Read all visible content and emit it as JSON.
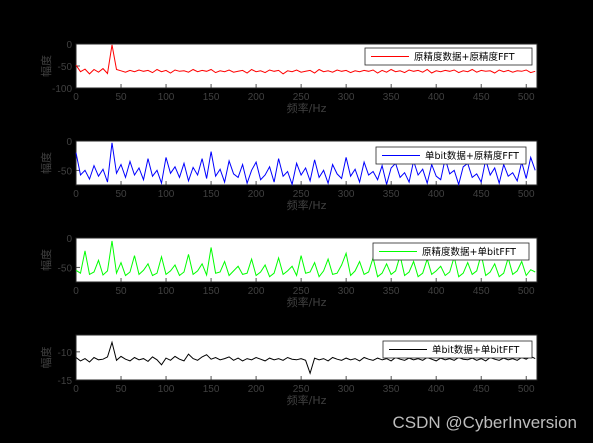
{
  "chart_data": [
    {
      "type": "line",
      "xlabel": "频率/Hz",
      "ylabel": "幅度",
      "xlim": [
        0,
        512
      ],
      "ylim": [
        -100,
        0
      ],
      "xticks": [
        0,
        50,
        100,
        150,
        200,
        250,
        300,
        350,
        400,
        450,
        500
      ],
      "yticks": [
        -100,
        -50,
        0
      ],
      "grid": false,
      "legend": "top-right",
      "series": [
        {
          "name": "原精度数据+原精度FFT",
          "color": "#ff0000",
          "x": [
            0,
            5,
            10,
            15,
            20,
            25,
            30,
            35,
            40,
            45,
            50,
            55,
            60,
            65,
            70,
            75,
            80,
            85,
            90,
            95,
            100,
            105,
            110,
            115,
            120,
            125,
            130,
            135,
            140,
            145,
            150,
            155,
            160,
            165,
            170,
            175,
            180,
            185,
            190,
            195,
            200,
            205,
            210,
            215,
            220,
            225,
            230,
            235,
            240,
            245,
            250,
            255,
            260,
            265,
            270,
            275,
            280,
            285,
            290,
            295,
            300,
            305,
            310,
            315,
            320,
            325,
            330,
            335,
            340,
            345,
            350,
            355,
            360,
            365,
            370,
            375,
            380,
            385,
            390,
            395,
            400,
            405,
            410,
            415,
            420,
            425,
            430,
            435,
            440,
            445,
            450,
            455,
            460,
            465,
            470,
            475,
            480,
            485,
            490,
            495,
            500,
            505,
            510
          ],
          "y": [
            -48,
            -63,
            -57,
            -68,
            -58,
            -64,
            -56,
            -67,
            -2,
            -58,
            -61,
            -64,
            -60,
            -63,
            -59,
            -62,
            -60,
            -65,
            -58,
            -63,
            -60,
            -66,
            -59,
            -62,
            -61,
            -64,
            -58,
            -63,
            -60,
            -62,
            -58,
            -65,
            -61,
            -63,
            -59,
            -64,
            -62,
            -60,
            -66,
            -58,
            -63,
            -61,
            -65,
            -59,
            -62,
            -60,
            -68,
            -61,
            -63,
            -59,
            -64,
            -62,
            -60,
            -66,
            -58,
            -63,
            -61,
            -64,
            -59,
            -62,
            -60,
            -65,
            -61,
            -63,
            -60,
            -62,
            -59,
            -66,
            -60,
            -64,
            -58,
            -63,
            -61,
            -65,
            -59,
            -62,
            -60,
            -64,
            -58,
            -66,
            -61,
            -63,
            -60,
            -62,
            -59,
            -65,
            -61,
            -63,
            -58,
            -64,
            -60,
            -62,
            -61,
            -66,
            -59,
            -63,
            -60,
            -64,
            -61,
            -62,
            -59,
            -65,
            -62
          ]
        }
      ]
    },
    {
      "type": "line",
      "xlabel": "频率/Hz",
      "ylabel": "幅度",
      "xlim": [
        0,
        512
      ],
      "ylim": [
        -75,
        0
      ],
      "xticks": [
        0,
        50,
        100,
        150,
        200,
        250,
        300,
        350,
        400,
        450,
        500
      ],
      "yticks": [
        -50,
        0
      ],
      "grid": false,
      "legend": "top-right",
      "series": [
        {
          "name": "单bit数据+原精度FFT",
          "color": "#0000ff",
          "x": [
            0,
            5,
            10,
            15,
            20,
            25,
            30,
            35,
            40,
            45,
            50,
            55,
            60,
            65,
            70,
            75,
            80,
            85,
            90,
            95,
            100,
            105,
            110,
            115,
            120,
            125,
            130,
            135,
            140,
            145,
            150,
            155,
            160,
            165,
            170,
            175,
            180,
            185,
            190,
            195,
            200,
            205,
            210,
            215,
            220,
            225,
            230,
            235,
            240,
            245,
            250,
            255,
            260,
            265,
            270,
            275,
            280,
            285,
            290,
            295,
            300,
            305,
            310,
            315,
            320,
            325,
            330,
            335,
            340,
            345,
            350,
            355,
            360,
            365,
            370,
            375,
            380,
            385,
            390,
            395,
            400,
            405,
            410,
            415,
            420,
            425,
            430,
            435,
            440,
            445,
            450,
            455,
            460,
            465,
            470,
            475,
            480,
            485,
            490,
            495,
            500,
            505,
            510
          ],
          "y": [
            -20,
            -58,
            -50,
            -65,
            -42,
            -60,
            -48,
            -70,
            -3,
            -55,
            -40,
            -62,
            -35,
            -58,
            -46,
            -66,
            -30,
            -60,
            -50,
            -72,
            -28,
            -55,
            -44,
            -62,
            -38,
            -68,
            -45,
            -58,
            -30,
            -64,
            -18,
            -60,
            -48,
            -70,
            -34,
            -56,
            -62,
            -40,
            -72,
            -50,
            -36,
            -66,
            -58,
            -44,
            -70,
            -30,
            -60,
            -52,
            -74,
            -38,
            -58,
            -46,
            -68,
            -32,
            -62,
            -50,
            -72,
            -40,
            -56,
            -64,
            -28,
            -60,
            -48,
            -70,
            -36,
            -58,
            -52,
            -66,
            -42,
            -74,
            -46,
            -38,
            -62,
            -54,
            -70,
            -34,
            -58,
            -48,
            -72,
            -40,
            -60,
            -66,
            -30,
            -56,
            -50,
            -74,
            -44,
            -38,
            -62,
            -56,
            -70,
            -32,
            -58,
            -46,
            -72,
            -40,
            -60,
            -54,
            -68,
            -36,
            -64,
            -28,
            -50
          ]
        }
      ]
    },
    {
      "type": "line",
      "xlabel": "频率/Hz",
      "ylabel": "幅度",
      "xlim": [
        0,
        512
      ],
      "ylim": [
        -75,
        0
      ],
      "xticks": [
        0,
        50,
        100,
        150,
        200,
        250,
        300,
        350,
        400,
        450,
        500
      ],
      "yticks": [
        -50,
        0
      ],
      "grid": false,
      "legend": "top-right",
      "series": [
        {
          "name": "原精度数据+单bitFFT",
          "color": "#00ff00",
          "x": [
            0,
            5,
            10,
            15,
            20,
            25,
            30,
            35,
            40,
            45,
            50,
            55,
            60,
            65,
            70,
            75,
            80,
            85,
            90,
            95,
            100,
            105,
            110,
            115,
            120,
            125,
            130,
            135,
            140,
            145,
            150,
            155,
            160,
            165,
            170,
            175,
            180,
            185,
            190,
            195,
            200,
            205,
            210,
            215,
            220,
            225,
            230,
            235,
            240,
            245,
            250,
            255,
            260,
            265,
            270,
            275,
            280,
            285,
            290,
            295,
            300,
            305,
            310,
            315,
            320,
            325,
            330,
            335,
            340,
            345,
            350,
            355,
            360,
            365,
            370,
            375,
            380,
            385,
            390,
            395,
            400,
            405,
            410,
            415,
            420,
            425,
            430,
            435,
            440,
            445,
            450,
            455,
            460,
            465,
            470,
            475,
            480,
            485,
            490,
            495,
            500,
            505,
            510
          ],
          "y": [
            -55,
            -60,
            -22,
            -62,
            -58,
            -38,
            -63,
            -56,
            -5,
            -60,
            -42,
            -64,
            -58,
            -30,
            -62,
            -55,
            -44,
            -64,
            -60,
            -32,
            -62,
            -56,
            -46,
            -64,
            -58,
            -28,
            -62,
            -56,
            -44,
            -63,
            -16,
            -60,
            -58,
            -40,
            -64,
            -56,
            -48,
            -62,
            -60,
            -36,
            -64,
            -58,
            -46,
            -66,
            -60,
            -34,
            -62,
            -56,
            -48,
            -64,
            -30,
            -60,
            -58,
            -42,
            -66,
            -56,
            -36,
            -62,
            -60,
            -46,
            -26,
            -64,
            -56,
            -40,
            -62,
            -58,
            -34,
            -66,
            -60,
            -44,
            -62,
            -56,
            -30,
            -64,
            -58,
            -40,
            -66,
            -60,
            -36,
            -62,
            -56,
            -48,
            -64,
            -58,
            -32,
            -66,
            -60,
            -42,
            -62,
            -56,
            -28,
            -64,
            -58,
            -44,
            -66,
            -60,
            -34,
            -62,
            -56,
            -40,
            -64,
            -54,
            -58
          ]
        }
      ]
    },
    {
      "type": "line",
      "xlabel": "频率/Hz",
      "ylabel": "幅度",
      "xlim": [
        0,
        512
      ],
      "ylim": [
        -15,
        -7
      ],
      "xticks": [
        0,
        50,
        100,
        150,
        200,
        250,
        300,
        350,
        400,
        450,
        500
      ],
      "yticks": [
        -15,
        -10
      ],
      "grid": false,
      "legend": "top-right",
      "series": [
        {
          "name": "单bit数据+单bitFFT",
          "color": "#000000",
          "x": [
            0,
            5,
            10,
            15,
            20,
            25,
            30,
            35,
            40,
            45,
            50,
            55,
            60,
            65,
            70,
            75,
            80,
            85,
            90,
            95,
            100,
            105,
            110,
            115,
            120,
            125,
            130,
            135,
            140,
            145,
            150,
            155,
            160,
            165,
            170,
            175,
            180,
            185,
            190,
            195,
            200,
            205,
            210,
            215,
            220,
            225,
            230,
            235,
            240,
            245,
            250,
            255,
            260,
            265,
            270,
            275,
            280,
            285,
            290,
            295,
            300,
            305,
            310,
            315,
            320,
            325,
            330,
            335,
            340,
            345,
            350,
            355,
            360,
            365,
            370,
            375,
            380,
            385,
            390,
            395,
            400,
            405,
            410,
            415,
            420,
            425,
            430,
            435,
            440,
            445,
            450,
            455,
            460,
            465,
            470,
            475,
            480,
            485,
            490,
            495,
            500,
            505,
            510
          ],
          "y": [
            -11,
            -11.6,
            -11.2,
            -11.8,
            -11.0,
            -11.4,
            -11.3,
            -10.9,
            -8.3,
            -11.5,
            -10.8,
            -11.3,
            -11.6,
            -11.0,
            -11.4,
            -11.2,
            -11.7,
            -10.9,
            -11.4,
            -12.3,
            -11.1,
            -11.5,
            -10.8,
            -11.3,
            -11.6,
            -10.4,
            -11.2,
            -11.5,
            -10.9,
            -10.5,
            -11.3,
            -11.0,
            -11.4,
            -11.2,
            -10.9,
            -11.5,
            -11.1,
            -11.6,
            -11.2,
            -11.4,
            -11.0,
            -11.3,
            -11.6,
            -11.1,
            -11.4,
            -11.2,
            -11.5,
            -11.0,
            -11.3,
            -11.4,
            -11.2,
            -11.5,
            -13.8,
            -11.1,
            -11.4,
            -11.2,
            -11.6,
            -11.0,
            -11.3,
            -11.5,
            -11.1,
            -11.4,
            -11.2,
            -11.6,
            -11.0,
            -11.3,
            -11.5,
            -11.1,
            -11.4,
            -11.2,
            -11.6,
            -11.0,
            -11.3,
            -11.5,
            -11.1,
            -11.4,
            -11.2,
            -11.5,
            -11.0,
            -11.3,
            -11.6,
            -11.1,
            -11.4,
            -11.2,
            -11.5,
            -11.0,
            -11.3,
            -11.4,
            -11.1,
            -11.5,
            -11.2,
            -11.6,
            -11.0,
            -11.3,
            -11.5,
            -11.1,
            -11.4,
            -11.2,
            -11.5,
            -11.0,
            -11.3,
            -10.8,
            -11.2
          ]
        }
      ]
    }
  ],
  "watermark": "CSDN @CyberInversion"
}
